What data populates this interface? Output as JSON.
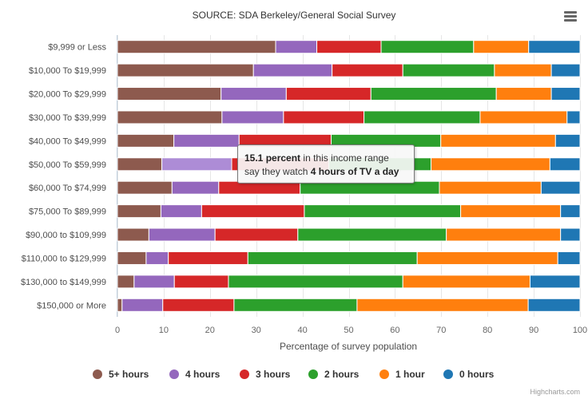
{
  "title": "SOURCE: SDA Berkeley/General Social Survey",
  "credits": "Highcharts.com",
  "colors": {
    "5+ hours": "#8d5a4e",
    "4 hours": "#9467bd",
    "3 hours": "#d62728",
    "2 hours": "#2ca02c",
    "1 hour": "#ff7f0e",
    "0 hours": "#1f77b4",
    "highlight": "#ad8cd6"
  },
  "tooltip": {
    "value": "15.1",
    "unit": "percent",
    "middle": " in this income range",
    "line2_prefix": "say they watch ",
    "category": "4 hours of TV a day"
  },
  "chart_data": {
    "type": "bar",
    "orientation": "horizontal",
    "stacking": "percent",
    "title": "SOURCE: SDA Berkeley/General Social Survey",
    "xlabel": "Percentage of survey population",
    "ylabel": "",
    "xlim": [
      0,
      100
    ],
    "x_ticks": [
      0,
      10,
      20,
      30,
      40,
      50,
      60,
      70,
      80,
      90,
      100
    ],
    "grid": true,
    "legend": "bottom",
    "highlight": {
      "category_index": 5,
      "series_index": 1
    },
    "categories": [
      "$9,999 or Less",
      "$10,000 To $19,999",
      "$20,000 To $29,999",
      "$30,000 To $39,999",
      "$40,000 To $49,999",
      "$50,000 To $59,999",
      "$60,000 To $74,999",
      "$75,000 To $89,999",
      "$90,000 to $109,999",
      "$110,000 to $129,999",
      "$130,000 to $149,999",
      "$150,000 or More"
    ],
    "series": [
      {
        "name": "5+ hours",
        "values": [
          34.2,
          29.4,
          22.4,
          22.6,
          12.2,
          9.6,
          11.8,
          9.4,
          6.8,
          6.2,
          3.6,
          1.0
        ]
      },
      {
        "name": "4 hours",
        "values": [
          8.9,
          17.0,
          14.1,
          13.3,
          14.1,
          15.1,
          10.1,
          8.8,
          14.3,
          4.8,
          8.7,
          8.8
        ]
      },
      {
        "name": "3 hours",
        "values": [
          13.9,
          15.3,
          18.3,
          17.4,
          19.9,
          21.0,
          17.6,
          22.2,
          17.9,
          17.2,
          11.7,
          15.4
        ]
      },
      {
        "name": "2 hours",
        "values": [
          20.0,
          19.8,
          27.1,
          25.1,
          23.7,
          22.1,
          30.1,
          33.8,
          32.1,
          36.6,
          37.7,
          26.6
        ]
      },
      {
        "name": "1 hour",
        "values": [
          11.9,
          12.3,
          11.9,
          18.8,
          24.8,
          25.7,
          22.0,
          21.6,
          24.7,
          30.4,
          27.5,
          37.0
        ]
      },
      {
        "name": "0 hours",
        "values": [
          11.1,
          6.2,
          6.2,
          2.8,
          5.3,
          6.5,
          8.4,
          4.2,
          4.2,
          4.8,
          10.8,
          11.2
        ]
      }
    ]
  }
}
